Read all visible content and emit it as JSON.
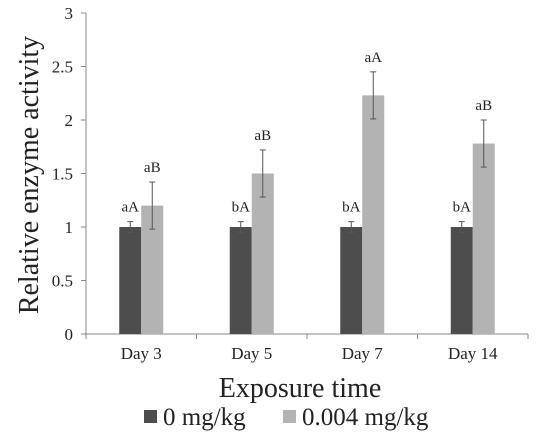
{
  "chart_data": {
    "type": "bar",
    "categories": [
      "Day 3",
      "Day 5",
      "Day 7",
      "Day 14"
    ],
    "series": [
      {
        "name": "0 mg/kg",
        "color": "#4d4d4d",
        "values": [
          1.0,
          1.0,
          1.0,
          1.0
        ],
        "errors": [
          0.05,
          0.05,
          0.05,
          0.05
        ],
        "labels": [
          "aA",
          "bA",
          "bA",
          "bA"
        ]
      },
      {
        "name": "0.004 mg/kg",
        "color": "#b3b3b3",
        "values": [
          1.2,
          1.5,
          2.23,
          1.78
        ],
        "errors": [
          0.22,
          0.22,
          0.22,
          0.22
        ],
        "labels": [
          "aB",
          "aB",
          "aA",
          "aB"
        ]
      }
    ],
    "ylabel": "Relative enzyme activity",
    "xlabel": "Exposure time",
    "ylim": [
      0,
      3
    ],
    "yticks": [
      "0",
      "0.5",
      "1",
      "1.5",
      "2",
      "2.5",
      "3"
    ],
    "legend_position": "bottom",
    "grid": false
  }
}
